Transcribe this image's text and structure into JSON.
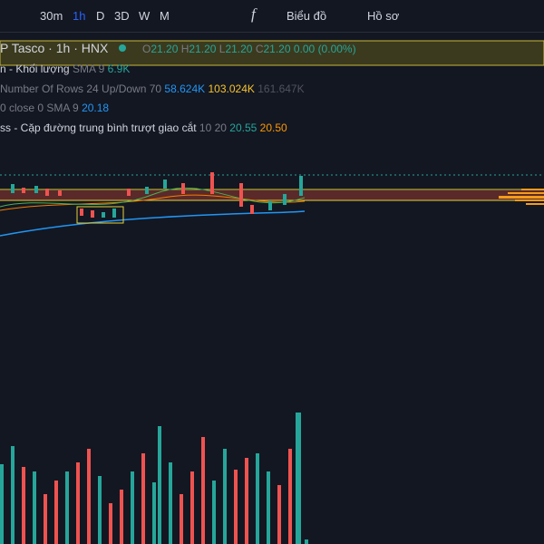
{
  "toolbar": {
    "intervals": [
      "30m",
      "1h",
      "D",
      "3D",
      "W",
      "M"
    ],
    "fx": "f",
    "chart_menu": "Biểu đồ",
    "profile_menu": "Hồ sơ"
  },
  "legend": {
    "symbol": "P Tasco · 1h · HNX",
    "ohlc": {
      "o_label": "O",
      "o": "21.20",
      "h_label": "H",
      "h": "21.20",
      "l_label": "L",
      "l": "21.20",
      "c_label": "C",
      "c": "21.20",
      "change": "0.00 (0.00%)"
    },
    "volume": {
      "name": "n - Khối lượng",
      "params": "SMA 9",
      "value": "6.9K"
    },
    "vp": {
      "name": "Number Of Rows 24 Up/Down 70",
      "up": "58.624K",
      "down": "103.024K",
      "total": "161.647K"
    },
    "sma": {
      "name": "0 close 0 SMA 9",
      "value": "20.18"
    },
    "cross": {
      "name": "ss - Cặp đường trung bình trượt giao cắt",
      "params": "10 20",
      "fast": "20.55",
      "slow": "20.50"
    }
  }
}
